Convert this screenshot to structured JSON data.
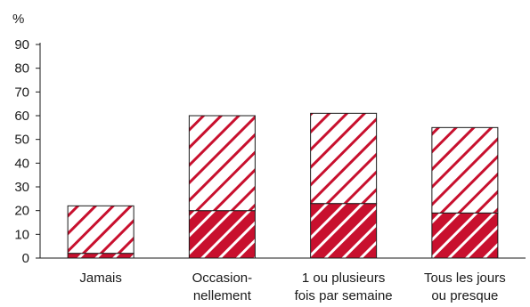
{
  "chart_data": {
    "type": "bar",
    "stacked": true,
    "ylabel": "%",
    "ylim": [
      0,
      90
    ],
    "yticks": [
      0,
      10,
      20,
      30,
      40,
      50,
      60,
      70,
      80,
      90
    ],
    "grid": false,
    "categories": [
      [
        "Jamais"
      ],
      [
        "Occasion-",
        "nellement"
      ],
      [
        "1 ou plusieurs",
        "fois par semaine"
      ],
      [
        "Tous les jours",
        "ou presque"
      ]
    ],
    "series": [
      {
        "values": [
          2,
          20,
          23,
          19
        ],
        "color": "#c8102e",
        "pattern": "solid-with-white-stripes"
      },
      {
        "values": [
          20,
          40,
          38,
          36
        ],
        "color": "#c8102e",
        "pattern": "white-with-red-stripes"
      }
    ]
  }
}
